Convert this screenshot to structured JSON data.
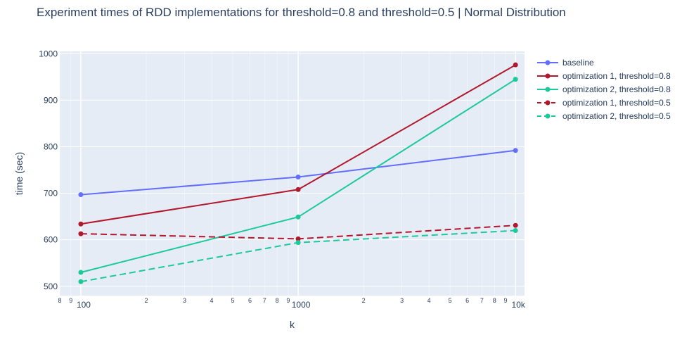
{
  "chart_data": {
    "type": "line",
    "title": "Experiment times of RDD implementations for threshold=0.8 and threshold=0.5 | Normal Distribution",
    "xlabel": "k",
    "ylabel": "time (sec)",
    "x_scale": "log",
    "xlim": [
      80,
      11000
    ],
    "ylim": [
      480,
      1005
    ],
    "x_ticks": [
      100,
      1000,
      10000
    ],
    "x_tick_labels": [
      "100",
      "1000",
      "10k"
    ],
    "x_minor_labels": [
      "8",
      "9",
      "2",
      "3",
      "4",
      "5",
      "6",
      "7",
      "8",
      "9",
      "2",
      "3",
      "4",
      "5",
      "6",
      "7",
      "8",
      "9"
    ],
    "y_ticks": [
      500,
      600,
      700,
      800,
      900,
      1000
    ],
    "y_tick_labels": [
      "500",
      "600",
      "700",
      "800",
      "900",
      "1000"
    ],
    "grid": true,
    "background": "#e5ecf6",
    "legend_position": "right",
    "x": [
      100,
      1000,
      10000
    ],
    "series": [
      {
        "name": "baseline",
        "values": [
          697,
          735,
          792
        ],
        "color": "#636efa",
        "dash": "solid"
      },
      {
        "name": "optimization 1, threshold=0.8",
        "values": [
          634,
          708,
          976
        ],
        "color": "#b2182b",
        "dash": "solid"
      },
      {
        "name": "optimization 2, threshold=0.8",
        "values": [
          530,
          649,
          945
        ],
        "color": "#1cc99a",
        "dash": "solid"
      },
      {
        "name": "optimization 1, threshold=0.5",
        "values": [
          613,
          602,
          631
        ],
        "color": "#b2182b",
        "dash": "dash"
      },
      {
        "name": "optimization 2, threshold=0.5",
        "values": [
          510,
          594,
          620
        ],
        "color": "#1cc99a",
        "dash": "dash"
      }
    ]
  }
}
